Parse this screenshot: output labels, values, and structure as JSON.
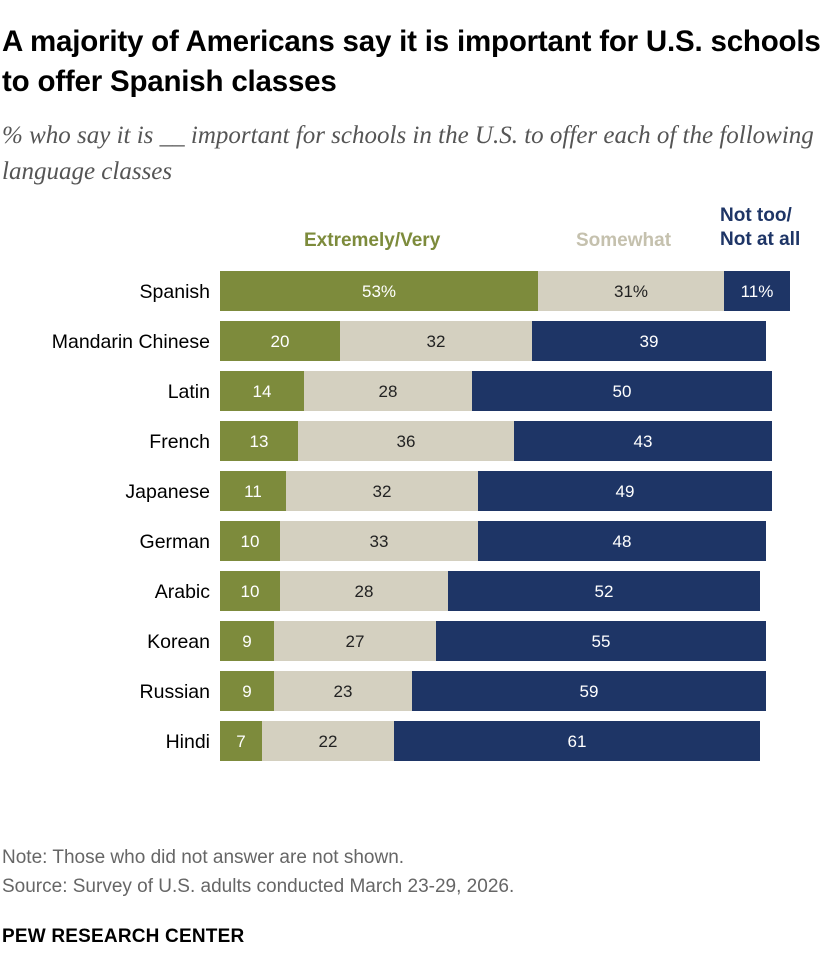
{
  "title": "A majority of Americans say it is important for U.S. schools to offer Spanish classes",
  "subtitle": "% who say it is __ important for schools in the U.S. to offer each of the following language classes",
  "colors": {
    "extremely_very": "#7d8b3c",
    "somewhat": "#d4d0c0",
    "not_too": "#1e3566",
    "legend_somewhat_text": "#c5c1ae"
  },
  "chart_data": {
    "type": "bar",
    "orientation": "horizontal",
    "stacked": true,
    "categories": [
      "Spanish",
      "Mandarin Chinese",
      "Latin",
      "French",
      "Japanese",
      "German",
      "Arabic",
      "Korean",
      "Russian",
      "Hindi"
    ],
    "series": [
      {
        "name": "Extremely/Very",
        "values": [
          53,
          20,
          14,
          13,
          11,
          10,
          10,
          9,
          9,
          7
        ],
        "labels": [
          "53%",
          "20",
          "14",
          "13",
          "11",
          "10",
          "10",
          "9",
          "9",
          "7"
        ]
      },
      {
        "name": "Somewhat",
        "values": [
          31,
          32,
          28,
          36,
          32,
          33,
          28,
          27,
          23,
          22
        ],
        "labels": [
          "31%",
          "32",
          "28",
          "36",
          "32",
          "33",
          "28",
          "27",
          "23",
          "22"
        ]
      },
      {
        "name": "Not too/\nNot at all",
        "values": [
          11,
          39,
          50,
          43,
          49,
          48,
          52,
          55,
          59,
          61
        ],
        "labels": [
          "11%",
          "39",
          "50",
          "43",
          "49",
          "48",
          "52",
          "55",
          "59",
          "61"
        ]
      }
    ],
    "xlim": [
      0,
      100
    ],
    "grid": false,
    "legend_position": "top"
  },
  "note": "Note: Those who did not answer are not shown.",
  "source": "Source: Survey of U.S. adults conducted March 23-29, 2026.",
  "brand": "PEW RESEARCH CENTER"
}
